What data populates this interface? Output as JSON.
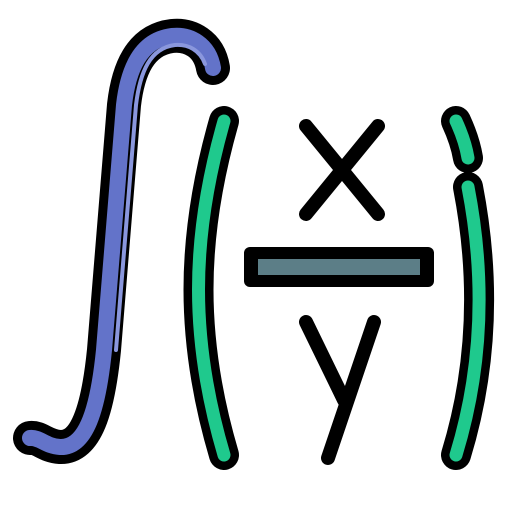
{
  "icon": {
    "name": "integral-fraction-icon",
    "symbols": {
      "numerator": "x",
      "denominator": "y"
    },
    "colors": {
      "outline": "#000000",
      "integral_fill": "#6373C9",
      "integral_highlight": "#8A97DD",
      "paren_fill": "#1FC98D",
      "paren_highlight": "#63E0B1",
      "fraction_bar_fill": "#5C7E87",
      "background": "#FFFFFF"
    }
  }
}
